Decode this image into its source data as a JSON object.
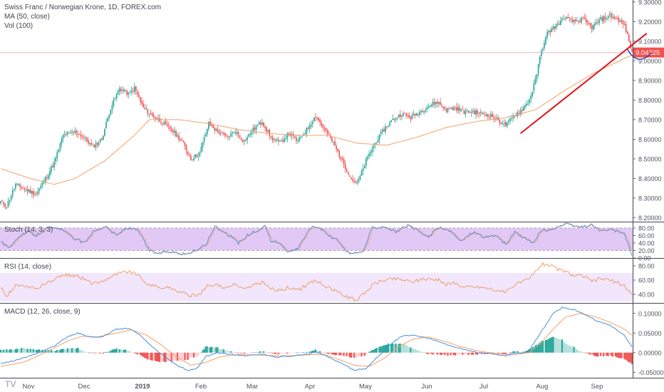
{
  "colors": {
    "up": "#26a69a",
    "down": "#ef5350",
    "ma": "#f5a06b",
    "trendline": "#e5101a",
    "arc": "#1c3bb4",
    "price_line": "#f2b6b6",
    "price_tag_bg": "#ef5350",
    "stoch_band": "#e2c8f5",
    "rsi_band": "#f1e6fb",
    "axis_text": "#50535e",
    "grid_sep": "#434651"
  },
  "legends": {
    "main": [
      "Swiss Franc / Norwegian Krone, 1D, FOREX.com",
      "MA (50, close)",
      "Vol (100)"
    ],
    "stoch": "Stoch (14, 3, 3)",
    "rsi": "RSI (14, close)",
    "macd": "MACD (12, 26, close, 9)"
  },
  "watermark": "TV",
  "price_tag": "9.04225",
  "chart_data": [
    {
      "type": "candlestick",
      "title": "Swiss Franc / Norwegian Krone, 1D, FOREX.com",
      "indicators": [
        "MA (50, close)",
        "Vol (100)"
      ],
      "y_ticks": [
        "9.30000",
        "9.20000",
        "9.10000",
        "9.00000",
        "8.90000",
        "8.80000",
        "8.70000",
        "8.60000",
        "8.50000",
        "8.40000",
        "8.30000",
        "8.20000"
      ],
      "ylim": [
        8.18,
        9.31
      ],
      "x_ticks": [
        "Nov",
        "Dec",
        "2019",
        "Feb",
        "Mar",
        "Apr",
        "May",
        "Jun",
        "Jul",
        "Aug",
        "Sep"
      ],
      "last_price": 9.04225,
      "anchors": [
        [
          0,
          8.28
        ],
        [
          4,
          8.26
        ],
        [
          10,
          8.37
        ],
        [
          18,
          8.34
        ],
        [
          24,
          8.32
        ],
        [
          30,
          8.4
        ],
        [
          36,
          8.48
        ],
        [
          42,
          8.62
        ],
        [
          50,
          8.64
        ],
        [
          56,
          8.61
        ],
        [
          62,
          8.56
        ],
        [
          68,
          8.6
        ],
        [
          74,
          8.76
        ],
        [
          80,
          8.86
        ],
        [
          86,
          8.83
        ],
        [
          90,
          8.86
        ],
        [
          96,
          8.76
        ],
        [
          102,
          8.72
        ],
        [
          108,
          8.69
        ],
        [
          116,
          8.64
        ],
        [
          122,
          8.59
        ],
        [
          128,
          8.5
        ],
        [
          134,
          8.53
        ],
        [
          140,
          8.68
        ],
        [
          146,
          8.64
        ],
        [
          152,
          8.61
        ],
        [
          158,
          8.64
        ],
        [
          164,
          8.59
        ],
        [
          170,
          8.65
        ],
        [
          176,
          8.69
        ],
        [
          182,
          8.61
        ],
        [
          188,
          8.58
        ],
        [
          194,
          8.63
        ],
        [
          200,
          8.59
        ],
        [
          206,
          8.65
        ],
        [
          212,
          8.72
        ],
        [
          218,
          8.65
        ],
        [
          224,
          8.58
        ],
        [
          230,
          8.49
        ],
        [
          236,
          8.4
        ],
        [
          240,
          8.37
        ],
        [
          246,
          8.49
        ],
        [
          252,
          8.58
        ],
        [
          258,
          8.65
        ],
        [
          264,
          8.7
        ],
        [
          270,
          8.73
        ],
        [
          276,
          8.71
        ],
        [
          282,
          8.74
        ],
        [
          288,
          8.77
        ],
        [
          294,
          8.79
        ],
        [
          300,
          8.75
        ],
        [
          306,
          8.76
        ],
        [
          312,
          8.74
        ],
        [
          318,
          8.74
        ],
        [
          324,
          8.73
        ],
        [
          330,
          8.72
        ],
        [
          336,
          8.69
        ],
        [
          340,
          8.67
        ],
        [
          346,
          8.72
        ],
        [
          352,
          8.76
        ],
        [
          356,
          8.8
        ],
        [
          360,
          8.9
        ],
        [
          364,
          9.05
        ],
        [
          368,
          9.14
        ],
        [
          374,
          9.18
        ],
        [
          380,
          9.22
        ],
        [
          386,
          9.2
        ],
        [
          392,
          9.21
        ],
        [
          398,
          9.17
        ],
        [
          404,
          9.21
        ],
        [
          410,
          9.23
        ],
        [
          416,
          9.21
        ],
        [
          420,
          9.18
        ],
        [
          423,
          9.1
        ],
        [
          425,
          9.04
        ]
      ],
      "ma_anchors": [
        [
          0,
          8.45
        ],
        [
          20,
          8.4
        ],
        [
          36,
          8.37
        ],
        [
          50,
          8.4
        ],
        [
          70,
          8.49
        ],
        [
          90,
          8.62
        ],
        [
          100,
          8.7
        ],
        [
          120,
          8.7
        ],
        [
          140,
          8.68
        ],
        [
          160,
          8.65
        ],
        [
          180,
          8.63
        ],
        [
          200,
          8.62
        ],
        [
          220,
          8.62
        ],
        [
          240,
          8.58
        ],
        [
          260,
          8.57
        ],
        [
          280,
          8.61
        ],
        [
          300,
          8.66
        ],
        [
          320,
          8.69
        ],
        [
          340,
          8.71
        ],
        [
          360,
          8.75
        ],
        [
          380,
          8.85
        ],
        [
          400,
          8.94
        ],
        [
          425,
          9.03
        ]
      ],
      "annotations": [
        {
          "type": "trendline",
          "from": [
            350,
            8.63
          ],
          "to": [
            435,
            9.14
          ]
        },
        {
          "type": "arc",
          "points": [
            [
              422,
              9.06
            ],
            [
              426,
              9.0
            ],
            [
              432,
              8.99
            ],
            [
              438,
              9.04
            ]
          ]
        }
      ]
    },
    {
      "type": "line",
      "title": "Stoch (14, 3, 3)",
      "y_ticks": [
        "80.00",
        "60.00",
        "40.00",
        "20.00",
        "0.00"
      ],
      "ylim": [
        0,
        95
      ],
      "band": [
        20,
        80
      ],
      "anchors": [
        [
          0,
          45
        ],
        [
          5,
          25
        ],
        [
          10,
          50
        ],
        [
          18,
          70
        ],
        [
          24,
          60
        ],
        [
          30,
          80
        ],
        [
          40,
          78
        ],
        [
          48,
          55
        ],
        [
          56,
          40
        ],
        [
          62,
          70
        ],
        [
          70,
          85
        ],
        [
          78,
          60
        ],
        [
          84,
          80
        ],
        [
          92,
          75
        ],
        [
          100,
          20
        ],
        [
          106,
          12
        ],
        [
          112,
          18
        ],
        [
          118,
          15
        ],
        [
          124,
          10
        ],
        [
          130,
          18
        ],
        [
          138,
          35
        ],
        [
          144,
          85
        ],
        [
          150,
          70
        ],
        [
          156,
          55
        ],
        [
          160,
          40
        ],
        [
          166,
          60
        ],
        [
          172,
          72
        ],
        [
          178,
          85
        ],
        [
          182,
          45
        ],
        [
          188,
          40
        ],
        [
          194,
          15
        ],
        [
          200,
          25
        ],
        [
          208,
          80
        ],
        [
          214,
          85
        ],
        [
          220,
          60
        ],
        [
          226,
          50
        ],
        [
          232,
          18
        ],
        [
          238,
          10
        ],
        [
          244,
          18
        ],
        [
          250,
          80
        ],
        [
          258,
          85
        ],
        [
          266,
          70
        ],
        [
          274,
          86
        ],
        [
          282,
          70
        ],
        [
          288,
          55
        ],
        [
          294,
          82
        ],
        [
          302,
          72
        ],
        [
          310,
          45
        ],
        [
          318,
          70
        ],
        [
          326,
          55
        ],
        [
          334,
          60
        ],
        [
          340,
          35
        ],
        [
          346,
          68
        ],
        [
          352,
          55
        ],
        [
          358,
          40
        ],
        [
          364,
          72
        ],
        [
          372,
          78
        ],
        [
          380,
          90
        ],
        [
          390,
          82
        ],
        [
          398,
          88
        ],
        [
          404,
          72
        ],
        [
          410,
          75
        ],
        [
          416,
          70
        ],
        [
          420,
          65
        ],
        [
          425,
          5
        ]
      ]
    },
    {
      "type": "line",
      "title": "RSI (14, close)",
      "y_ticks": [
        "80.00",
        "60.00",
        "40.00"
      ],
      "ylim": [
        28,
        90
      ],
      "band": [
        30,
        70
      ],
      "anchors": [
        [
          0,
          50
        ],
        [
          4,
          38
        ],
        [
          10,
          52
        ],
        [
          18,
          50
        ],
        [
          24,
          48
        ],
        [
          30,
          55
        ],
        [
          36,
          60
        ],
        [
          42,
          68
        ],
        [
          50,
          66
        ],
        [
          56,
          62
        ],
        [
          62,
          55
        ],
        [
          68,
          58
        ],
        [
          74,
          65
        ],
        [
          80,
          70
        ],
        [
          86,
          72
        ],
        [
          92,
          68
        ],
        [
          96,
          58
        ],
        [
          102,
          52
        ],
        [
          108,
          50
        ],
        [
          116,
          48
        ],
        [
          122,
          42
        ],
        [
          128,
          38
        ],
        [
          134,
          40
        ],
        [
          140,
          54
        ],
        [
          146,
          52
        ],
        [
          152,
          50
        ],
        [
          158,
          54
        ],
        [
          164,
          47
        ],
        [
          170,
          53
        ],
        [
          176,
          57
        ],
        [
          182,
          48
        ],
        [
          188,
          45
        ],
        [
          194,
          50
        ],
        [
          200,
          45
        ],
        [
          206,
          53
        ],
        [
          212,
          60
        ],
        [
          218,
          52
        ],
        [
          224,
          46
        ],
        [
          230,
          40
        ],
        [
          236,
          34
        ],
        [
          240,
          32
        ],
        [
          246,
          44
        ],
        [
          252,
          56
        ],
        [
          258,
          60
        ],
        [
          264,
          62
        ],
        [
          270,
          61
        ],
        [
          276,
          58
        ],
        [
          282,
          60
        ],
        [
          288,
          62
        ],
        [
          294,
          61
        ],
        [
          300,
          54
        ],
        [
          306,
          56
        ],
        [
          312,
          50
        ],
        [
          318,
          51
        ],
        [
          324,
          50
        ],
        [
          330,
          48
        ],
        [
          336,
          44
        ],
        [
          340,
          43
        ],
        [
          346,
          54
        ],
        [
          352,
          58
        ],
        [
          356,
          62
        ],
        [
          360,
          72
        ],
        [
          364,
          82
        ],
        [
          368,
          83
        ],
        [
          374,
          76
        ],
        [
          380,
          72
        ],
        [
          386,
          66
        ],
        [
          392,
          66
        ],
        [
          398,
          58
        ],
        [
          404,
          62
        ],
        [
          410,
          60
        ],
        [
          416,
          56
        ],
        [
          420,
          52
        ],
        [
          425,
          40
        ]
      ]
    },
    {
      "type": "bar",
      "title": "MACD (12, 26, close, 9)",
      "y_ticks": [
        "0.10000",
        "0.05000",
        "0.00000",
        "-0.05000"
      ],
      "ylim": [
        -0.064,
        0.125
      ],
      "macd_anchors": [
        [
          0,
          -0.028
        ],
        [
          10,
          -0.02
        ],
        [
          22,
          -0.005
        ],
        [
          35,
          0.015
        ],
        [
          45,
          0.04
        ],
        [
          52,
          0.05
        ],
        [
          60,
          0.04
        ],
        [
          68,
          0.04
        ],
        [
          78,
          0.06
        ],
        [
          86,
          0.062
        ],
        [
          94,
          0.045
        ],
        [
          102,
          0.015
        ],
        [
          110,
          -0.01
        ],
        [
          120,
          -0.035
        ],
        [
          126,
          -0.045
        ],
        [
          132,
          -0.04
        ],
        [
          138,
          -0.01
        ],
        [
          146,
          0.0
        ],
        [
          156,
          -0.005
        ],
        [
          166,
          -0.008
        ],
        [
          176,
          -0.004
        ],
        [
          186,
          -0.012
        ],
        [
          196,
          -0.008
        ],
        [
          206,
          -0.005
        ],
        [
          212,
          0.002
        ],
        [
          220,
          -0.01
        ],
        [
          230,
          -0.028
        ],
        [
          238,
          -0.045
        ],
        [
          246,
          -0.04
        ],
        [
          254,
          -0.01
        ],
        [
          262,
          0.02
        ],
        [
          270,
          0.042
        ],
        [
          278,
          0.045
        ],
        [
          286,
          0.038
        ],
        [
          294,
          0.03
        ],
        [
          302,
          0.018
        ],
        [
          312,
          0.008
        ],
        [
          322,
          0.0
        ],
        [
          330,
          -0.003
        ],
        [
          340,
          -0.008
        ],
        [
          346,
          -0.002
        ],
        [
          352,
          0.0
        ],
        [
          356,
          0.008
        ],
        [
          360,
          0.03
        ],
        [
          366,
          0.065
        ],
        [
          372,
          0.1
        ],
        [
          378,
          0.115
        ],
        [
          386,
          0.11
        ],
        [
          394,
          0.095
        ],
        [
          402,
          0.08
        ],
        [
          410,
          0.07
        ],
        [
          416,
          0.055
        ],
        [
          420,
          0.045
        ],
        [
          425,
          0.015
        ]
      ],
      "signal_anchors": [
        [
          0,
          -0.035
        ],
        [
          15,
          -0.025
        ],
        [
          30,
          0.0
        ],
        [
          45,
          0.03
        ],
        [
          55,
          0.042
        ],
        [
          65,
          0.04
        ],
        [
          78,
          0.05
        ],
        [
          88,
          0.058
        ],
        [
          98,
          0.045
        ],
        [
          108,
          0.02
        ],
        [
          118,
          -0.01
        ],
        [
          128,
          -0.032
        ],
        [
          138,
          -0.025
        ],
        [
          148,
          -0.01
        ],
        [
          160,
          -0.005
        ],
        [
          172,
          -0.006
        ],
        [
          184,
          -0.008
        ],
        [
          196,
          -0.008
        ],
        [
          208,
          -0.005
        ],
        [
          218,
          -0.005
        ],
        [
          228,
          -0.018
        ],
        [
          238,
          -0.032
        ],
        [
          248,
          -0.035
        ],
        [
          258,
          -0.015
        ],
        [
          268,
          0.015
        ],
        [
          278,
          0.035
        ],
        [
          288,
          0.04
        ],
        [
          298,
          0.03
        ],
        [
          310,
          0.015
        ],
        [
          322,
          0.004
        ],
        [
          334,
          -0.003
        ],
        [
          346,
          -0.005
        ],
        [
          356,
          0.0
        ],
        [
          364,
          0.025
        ],
        [
          372,
          0.06
        ],
        [
          380,
          0.09
        ],
        [
          390,
          0.1
        ],
        [
          400,
          0.092
        ],
        [
          410,
          0.078
        ],
        [
          420,
          0.06
        ],
        [
          425,
          0.044
        ]
      ]
    }
  ]
}
